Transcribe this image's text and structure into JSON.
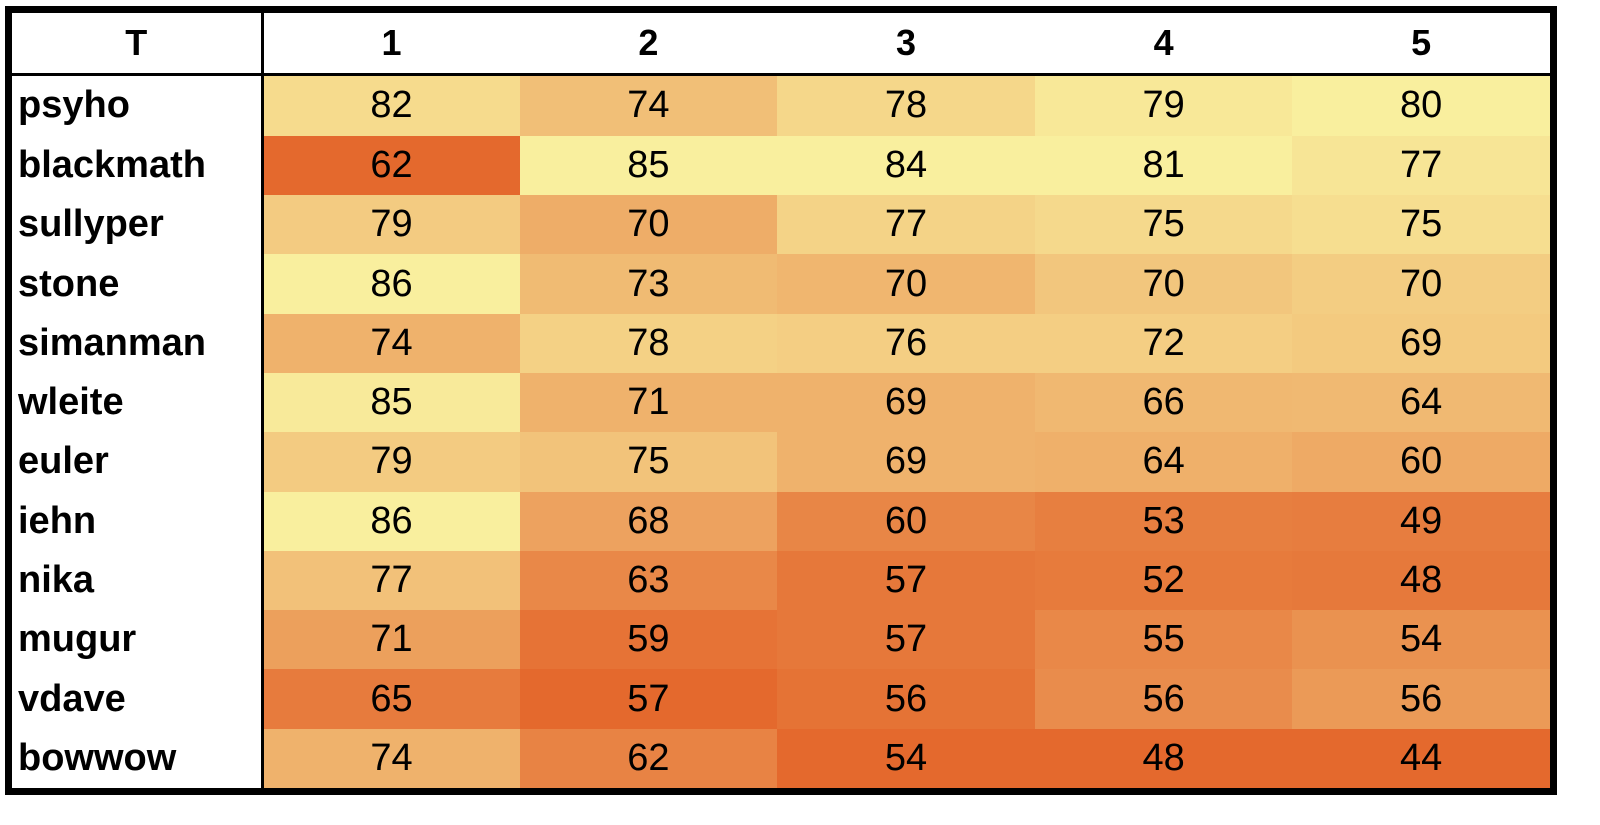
{
  "table": {
    "header": [
      "T",
      "1",
      "2",
      "3",
      "4",
      "5"
    ],
    "rows": [
      {
        "name": "psyho",
        "values": [
          82,
          74,
          78,
          79,
          80
        ]
      },
      {
        "name": "blackmath",
        "values": [
          62,
          85,
          84,
          81,
          77
        ]
      },
      {
        "name": "sullyper",
        "values": [
          79,
          70,
          77,
          75,
          75
        ]
      },
      {
        "name": "stone",
        "values": [
          86,
          73,
          70,
          70,
          70
        ]
      },
      {
        "name": "simanman",
        "values": [
          74,
          78,
          76,
          72,
          69
        ]
      },
      {
        "name": "wleite",
        "values": [
          85,
          71,
          69,
          66,
          64
        ]
      },
      {
        "name": "euler",
        "values": [
          79,
          75,
          69,
          64,
          60
        ]
      },
      {
        "name": "iehn",
        "values": [
          86,
          68,
          60,
          53,
          49
        ]
      },
      {
        "name": "nika",
        "values": [
          77,
          63,
          57,
          52,
          48
        ]
      },
      {
        "name": "mugur",
        "values": [
          71,
          59,
          57,
          55,
          54
        ]
      },
      {
        "name": "vdave",
        "values": [
          65,
          57,
          56,
          56,
          56
        ]
      },
      {
        "name": "bowwow",
        "values": [
          74,
          62,
          54,
          48,
          44
        ]
      }
    ],
    "color_scale": {
      "by": "column",
      "low": "#e4692d",
      "mid": "#efb26c",
      "high": "#f9ef9e"
    }
  }
}
